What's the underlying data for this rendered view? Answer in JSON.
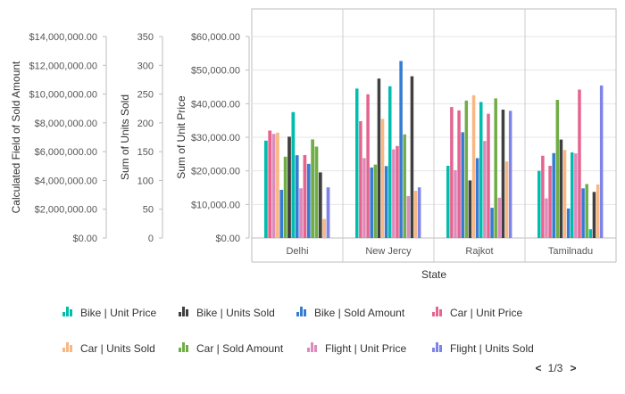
{
  "chart_data": {
    "type": "bar",
    "categories": [
      "Delhi",
      "New Jercy",
      "Rajkot",
      "Tamilnadu"
    ],
    "xlabel": "State",
    "axes": {
      "unit_price": {
        "title": "Sum of Unit Price",
        "range": [
          0,
          60000
        ],
        "ticks": [
          "$0.00",
          "$10,000.00",
          "$20,000.00",
          "$30,000.00",
          "$40,000.00",
          "$50,000.00",
          "$60,000.00"
        ]
      },
      "units_sold": {
        "title": "Sum of Units Sold",
        "range": [
          0,
          350
        ],
        "ticks": [
          "0",
          "50",
          "100",
          "150",
          "200",
          "250",
          "300",
          "350"
        ]
      },
      "sold_amount": {
        "title": "Calculated Field of Sold Amount",
        "range": [
          0,
          14000000
        ],
        "ticks": [
          "$0.00",
          "$2,000,000.00",
          "$4,000,000.00",
          "$6,000,000.00",
          "$8,000,000.00",
          "$10,000,000.00",
          "$12,000,000.00",
          "$14,000,000.00"
        ]
      }
    },
    "series": [
      {
        "name": "Bike | Unit Price",
        "color": "#00bdae",
        "axis": "unit_price"
      },
      {
        "name": "Bike | Units Sold",
        "color": "#404041",
        "axis": "units_sold"
      },
      {
        "name": "Bike | Sold Amount",
        "color": "#357cd2",
        "axis": "sold_amount"
      },
      {
        "name": "Car | Unit Price",
        "color": "#e56590",
        "axis": "unit_price"
      },
      {
        "name": "Car | Units Sold",
        "color": "#f8b883",
        "axis": "units_sold"
      },
      {
        "name": "Car | Sold Amount",
        "color": "#70ad47",
        "axis": "sold_amount"
      },
      {
        "name": "Flight | Unit Price",
        "color": "#dd8abd",
        "axis": "unit_price"
      },
      {
        "name": "Flight | Units Sold",
        "color": "#7f84e8",
        "axis": "units_sold"
      }
    ],
    "groups": [
      {
        "category": "Delhi",
        "bars": [
          {
            "s": 0,
            "v": 29000
          },
          {
            "s": 3,
            "v": 32000
          },
          {
            "s": 6,
            "v": 31000
          },
          {
            "s": 4,
            "v": 183
          },
          {
            "s": 2,
            "v": 3350000
          },
          {
            "s": 5,
            "v": 5650000
          },
          {
            "s": 1,
            "v": 176
          },
          {
            "s": 0,
            "v": 37500
          },
          {
            "s": 2,
            "v": 5750000
          },
          {
            "s": 6,
            "v": 14800
          },
          {
            "s": 3,
            "v": 24700
          },
          {
            "s": 2,
            "v": 5150000
          },
          {
            "s": 5,
            "v": 6850000
          },
          {
            "s": 5,
            "v": 6350000
          },
          {
            "s": 1,
            "v": 114
          },
          {
            "s": 4,
            "v": 33
          },
          {
            "s": 7,
            "v": 88
          }
        ]
      },
      {
        "category": "New Jercy",
        "bars": [
          {
            "s": 0,
            "v": 44500
          },
          {
            "s": 3,
            "v": 34800
          },
          {
            "s": 6,
            "v": 23800
          },
          {
            "s": 3,
            "v": 42800
          },
          {
            "s": 2,
            "v": 4900000
          },
          {
            "s": 5,
            "v": 5100000
          },
          {
            "s": 1,
            "v": 277
          },
          {
            "s": 4,
            "v": 207
          },
          {
            "s": 2,
            "v": 5000000
          },
          {
            "s": 0,
            "v": 45200
          },
          {
            "s": 6,
            "v": 26400
          },
          {
            "s": 3,
            "v": 27400
          },
          {
            "s": 2,
            "v": 12300000
          },
          {
            "s": 5,
            "v": 7200000
          },
          {
            "s": 6,
            "v": 12500
          },
          {
            "s": 1,
            "v": 281
          },
          {
            "s": 4,
            "v": 82
          },
          {
            "s": 7,
            "v": 88
          }
        ]
      },
      {
        "category": "Rajkot",
        "bars": [
          {
            "s": 0,
            "v": 21500
          },
          {
            "s": 3,
            "v": 39000
          },
          {
            "s": 6,
            "v": 20200
          },
          {
            "s": 3,
            "v": 38000
          },
          {
            "s": 2,
            "v": 7350000
          },
          {
            "s": 5,
            "v": 9550000
          },
          {
            "s": 1,
            "v": 100
          },
          {
            "s": 4,
            "v": 248
          },
          {
            "s": 2,
            "v": 5550000
          },
          {
            "s": 0,
            "v": 40500
          },
          {
            "s": 6,
            "v": 28900
          },
          {
            "s": 3,
            "v": 37000
          },
          {
            "s": 2,
            "v": 2100000
          },
          {
            "s": 5,
            "v": 9700000
          },
          {
            "s": 6,
            "v": 12000
          },
          {
            "s": 1,
            "v": 223
          },
          {
            "s": 4,
            "v": 133
          },
          {
            "s": 7,
            "v": 221
          }
        ]
      },
      {
        "category": "Tamilnadu",
        "bars": [
          {
            "s": 0,
            "v": 20000
          },
          {
            "s": 3,
            "v": 24500
          },
          {
            "s": 6,
            "v": 11800
          },
          {
            "s": 3,
            "v": 21500
          },
          {
            "s": 2,
            "v": 5900000
          },
          {
            "s": 5,
            "v": 9600000
          },
          {
            "s": 1,
            "v": 171
          },
          {
            "s": 4,
            "v": 153
          },
          {
            "s": 2,
            "v": 2050000
          },
          {
            "s": 0,
            "v": 25500
          },
          {
            "s": 6,
            "v": 25200
          },
          {
            "s": 3,
            "v": 44200
          },
          {
            "s": 2,
            "v": 3450000
          },
          {
            "s": 5,
            "v": 3750000
          },
          {
            "s": 0,
            "v": 2600
          },
          {
            "s": 1,
            "v": 80
          },
          {
            "s": 4,
            "v": 93
          },
          {
            "s": 7,
            "v": 265
          }
        ]
      }
    ],
    "legend_placement": "bottom",
    "grid": true
  },
  "legend": {
    "page_label": "1/3",
    "prev_glyph": "<",
    "next_glyph": ">"
  }
}
